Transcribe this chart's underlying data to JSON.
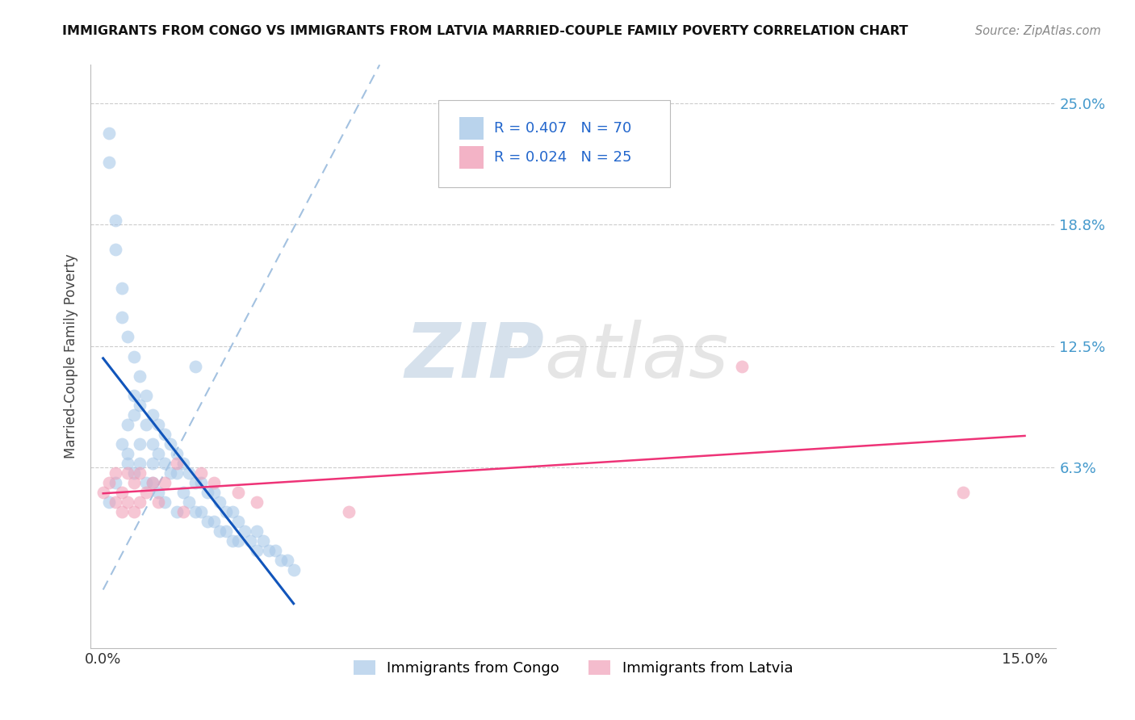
{
  "title": "IMMIGRANTS FROM CONGO VS IMMIGRANTS FROM LATVIA MARRIED-COUPLE FAMILY POVERTY CORRELATION CHART",
  "source": "Source: ZipAtlas.com",
  "ylabel": "Married-Couple Family Poverty",
  "congo_color": "#A8C8E8",
  "latvia_color": "#F0A0B8",
  "congo_line_color": "#1155BB",
  "latvia_line_color": "#EE3377",
  "dashed_line_color": "#99BBDD",
  "legend_congo": "R = 0.407   N = 70",
  "legend_latvia": "R = 0.024   N = 25",
  "watermark_zip": "ZIP",
  "watermark_atlas": "atlas",
  "ytick_vals": [
    0.063,
    0.125,
    0.188,
    0.25
  ],
  "ytick_labels": [
    "6.3%",
    "12.5%",
    "18.8%",
    "25.0%"
  ],
  "congo_x": [
    0.001,
    0.001,
    0.002,
    0.002,
    0.003,
    0.003,
    0.003,
    0.004,
    0.004,
    0.004,
    0.005,
    0.005,
    0.005,
    0.005,
    0.006,
    0.006,
    0.006,
    0.007,
    0.007,
    0.007,
    0.008,
    0.008,
    0.008,
    0.009,
    0.009,
    0.009,
    0.01,
    0.01,
    0.01,
    0.011,
    0.011,
    0.012,
    0.012,
    0.012,
    0.013,
    0.013,
    0.014,
    0.014,
    0.015,
    0.015,
    0.016,
    0.016,
    0.017,
    0.017,
    0.018,
    0.018,
    0.019,
    0.019,
    0.02,
    0.02,
    0.021,
    0.021,
    0.022,
    0.022,
    0.023,
    0.024,
    0.025,
    0.025,
    0.026,
    0.027,
    0.028,
    0.029,
    0.03,
    0.031,
    0.015,
    0.008,
    0.006,
    0.004,
    0.002,
    0.001
  ],
  "congo_y": [
    0.22,
    0.235,
    0.19,
    0.175,
    0.155,
    0.14,
    0.075,
    0.13,
    0.085,
    0.07,
    0.12,
    0.1,
    0.09,
    0.06,
    0.11,
    0.095,
    0.075,
    0.1,
    0.085,
    0.055,
    0.09,
    0.075,
    0.055,
    0.085,
    0.07,
    0.05,
    0.08,
    0.065,
    0.045,
    0.075,
    0.06,
    0.07,
    0.06,
    0.04,
    0.065,
    0.05,
    0.06,
    0.045,
    0.055,
    0.04,
    0.055,
    0.04,
    0.05,
    0.035,
    0.05,
    0.035,
    0.045,
    0.03,
    0.04,
    0.03,
    0.04,
    0.025,
    0.035,
    0.025,
    0.03,
    0.025,
    0.03,
    0.02,
    0.025,
    0.02,
    0.02,
    0.015,
    0.015,
    0.01,
    0.115,
    0.065,
    0.065,
    0.065,
    0.055,
    0.045
  ],
  "latvia_x": [
    0.0,
    0.001,
    0.002,
    0.002,
    0.003,
    0.003,
    0.004,
    0.004,
    0.005,
    0.005,
    0.006,
    0.006,
    0.007,
    0.008,
    0.009,
    0.01,
    0.012,
    0.013,
    0.016,
    0.018,
    0.022,
    0.025,
    0.04,
    0.104,
    0.14
  ],
  "latvia_y": [
    0.05,
    0.055,
    0.045,
    0.06,
    0.05,
    0.04,
    0.06,
    0.045,
    0.055,
    0.04,
    0.06,
    0.045,
    0.05,
    0.055,
    0.045,
    0.055,
    0.065,
    0.04,
    0.06,
    0.055,
    0.05,
    0.045,
    0.04,
    0.115,
    0.05
  ]
}
